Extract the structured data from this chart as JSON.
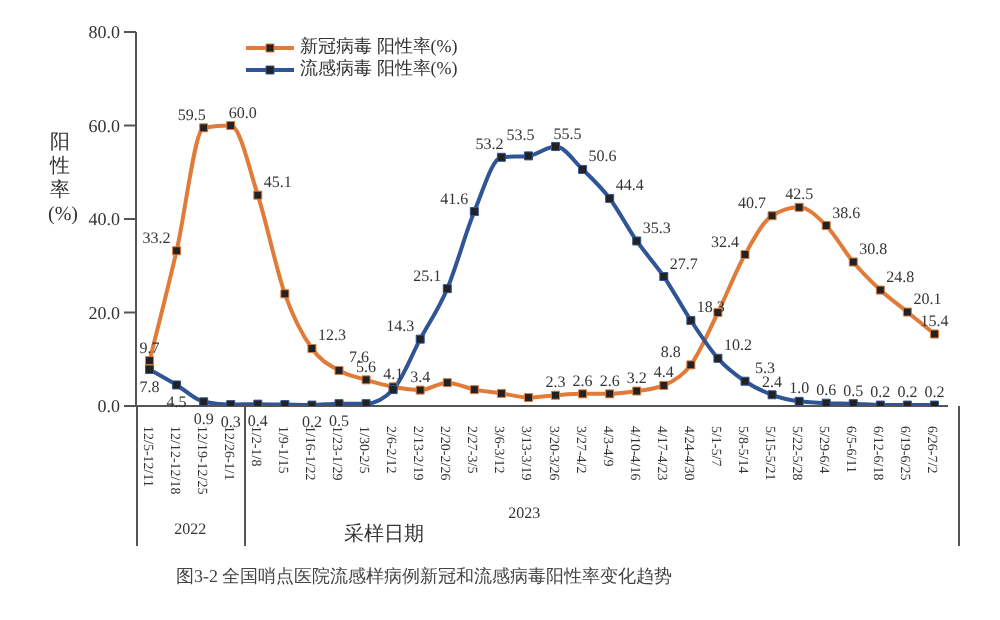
{
  "chart_data": {
    "type": "line",
    "ylabel": "阳性率(%)",
    "xlabel": "采样日期",
    "categories": [
      "12/5-12/11",
      "12/12-12/18",
      "12/19-12/25",
      "12/26-1/1",
      "1/2-1/8",
      "1/9-1/15",
      "1/16-1/22",
      "1/23-1/29",
      "1/30-2/5",
      "2/6-2/12",
      "2/13-2/19",
      "2/20-2/26",
      "2/27-3/5",
      "3/6-3/12",
      "3/13-3/19",
      "3/20-3/26",
      "3/27-4/2",
      "4/3-4/9",
      "4/10-4/16",
      "4/17-4/23",
      "4/24-4/30",
      "5/1-5/7",
      "5/8-5/14",
      "5/15-5/21",
      "5/22-5/28",
      "5/29-6/4",
      "6/5-6/11",
      "6/12-6/18",
      "6/19-6/25",
      "6/26-7/2"
    ],
    "series": [
      {
        "name": "新冠病毒 阳性率(%)",
        "color": "#e07b39",
        "values": [
          9.7,
          33.2,
          59.5,
          60.0,
          45.1,
          24,
          12.3,
          7.6,
          5.6,
          4.1,
          3.4,
          5,
          3.5,
          2.7,
          1.8,
          2.3,
          2.6,
          2.6,
          3.2,
          4.4,
          8.8,
          20,
          32.4,
          40.7,
          42.5,
          38.6,
          30.8,
          24.8,
          20.1,
          15.4
        ],
        "value_labels": [
          "9.7",
          "33.2",
          "59.5",
          "60.0",
          "45.1",
          null,
          "12.3",
          "7.6",
          "5.6",
          "4.1",
          "3.4",
          null,
          null,
          null,
          null,
          "2.3",
          "2.6",
          "2.6",
          "3.2",
          "4.4",
          "8.8",
          null,
          "32.4",
          "40.7",
          "42.5",
          "38.6",
          "30.8",
          "24.8",
          "20.1",
          "15.4"
        ]
      },
      {
        "name": "流感病毒 阳性率(%)",
        "color": "#2f5597",
        "values": [
          7.8,
          4.5,
          0.9,
          0.3,
          0.4,
          0.3,
          0.2,
          0.5,
          0.5,
          3.5,
          14.3,
          25.1,
          41.6,
          53.2,
          53.5,
          55.5,
          50.6,
          44.4,
          35.3,
          27.7,
          18.3,
          10.2,
          5.3,
          2.4,
          1.0,
          0.6,
          0.5,
          0.2,
          0.2,
          0.2
        ],
        "value_labels": [
          "7.8",
          "4.5",
          "0.9",
          "0.3",
          "0.4",
          null,
          "0.2",
          "0.5",
          null,
          null,
          "14.3",
          "25.1",
          "41.6",
          "53.2",
          "53.5",
          "55.5",
          "50.6",
          "44.4",
          "35.3",
          "27.7",
          "18.3",
          "10.2",
          "5.3",
          "2.4",
          "1.0",
          "0.6",
          "0.5",
          "0.2",
          "0.2",
          "0.2"
        ]
      }
    ],
    "ylim": [
      0,
      80
    ],
    "yticks": [
      {
        "value": 0,
        "label": "0.0"
      },
      {
        "value": 20,
        "label": "20.0"
      },
      {
        "value": 40,
        "label": "40.0"
      },
      {
        "value": 60,
        "label": "60.0"
      },
      {
        "value": 80,
        "label": "80.0"
      }
    ],
    "grid": false,
    "legend": "top left",
    "marker": "square",
    "line_style": "solid",
    "annotations": [
      "2022",
      "2023",
      "图3-2 全国哨点医院流感样病例新冠和流感病毒阳性率变化趋势"
    ]
  }
}
